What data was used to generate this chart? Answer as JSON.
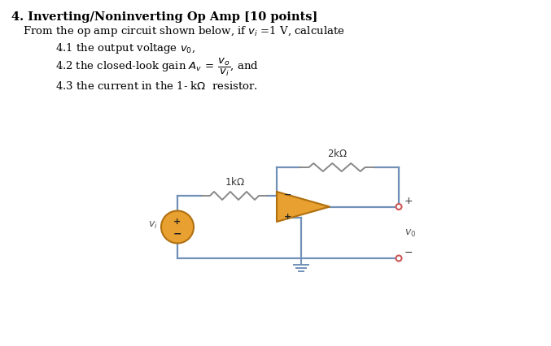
{
  "bg_color": "#ffffff",
  "wire_color": "#7090b8",
  "opamp_fill": "#e8a030",
  "opamp_edge": "#b07010",
  "vsource_fill": "#e8a030",
  "vsource_edge": "#b07010",
  "resistor_color": "#888888",
  "terminal_color": "#cc5555",
  "ground_color": "#7090b8",
  "title_text": "4. Inverting/Noninverting Op Amp [10 points]",
  "subtitle_text": "From the op amp circuit shown below, if $v_i\\,{=}1\\,$V, calculate",
  "item1_text": "4.1 the output voltage $v_0$,",
  "item3_text": "4.3 the current in the 1- k$\\Omega$  resistor.",
  "res1_label": "1k$\\Omega$",
  "res2_label": "2k$\\Omega$",
  "vi_label": "$v_i$",
  "vo_label": "$v_0$"
}
